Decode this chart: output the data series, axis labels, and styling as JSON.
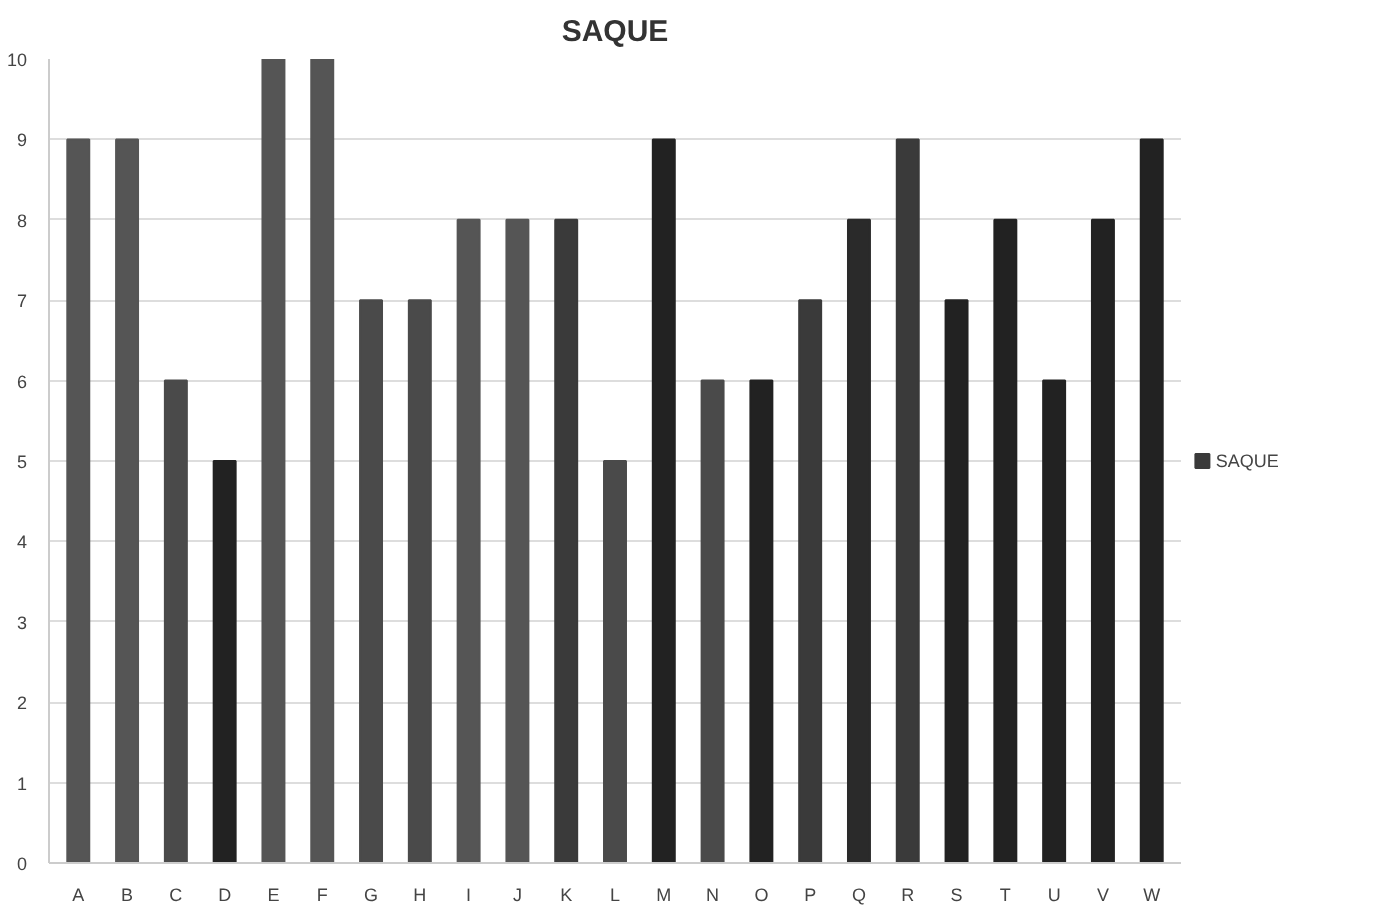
{
  "chart_data": {
    "type": "bar",
    "title": "SAQUE",
    "categories": [
      "A",
      "B",
      "C",
      "D",
      "E",
      "F",
      "G",
      "H",
      "I",
      "J",
      "K",
      "L",
      "M",
      "N",
      "O",
      "P",
      "Q",
      "R",
      "S",
      "T",
      "U",
      "V",
      "W"
    ],
    "series": [
      {
        "name": "SAQUE",
        "color": "#3a3a3a",
        "values": [
          9,
          9,
          6,
          5,
          10,
          10,
          7,
          7,
          8,
          8,
          8,
          5,
          9,
          6,
          6,
          7,
          8,
          9,
          7,
          8,
          6,
          8,
          9
        ],
        "colors": [
          "#555555",
          "#555555",
          "#4a4a4a",
          "#222222",
          "#555555",
          "#555555",
          "#4a4a4a",
          "#4a4a4a",
          "#555555",
          "#555555",
          "#3a3a3a",
          "#4a4a4a",
          "#222222",
          "#4a4a4a",
          "#222222",
          "#3a3a3a",
          "#2a2a2a",
          "#3a3a3a",
          "#222222",
          "#222222",
          "#222222",
          "#222222",
          "#222222"
        ]
      }
    ],
    "ylim": [
      0,
      10
    ],
    "yticks": [
      0,
      1,
      2,
      3,
      4,
      5,
      6,
      7,
      8,
      9,
      10
    ],
    "grid": "y",
    "legend": "right"
  }
}
